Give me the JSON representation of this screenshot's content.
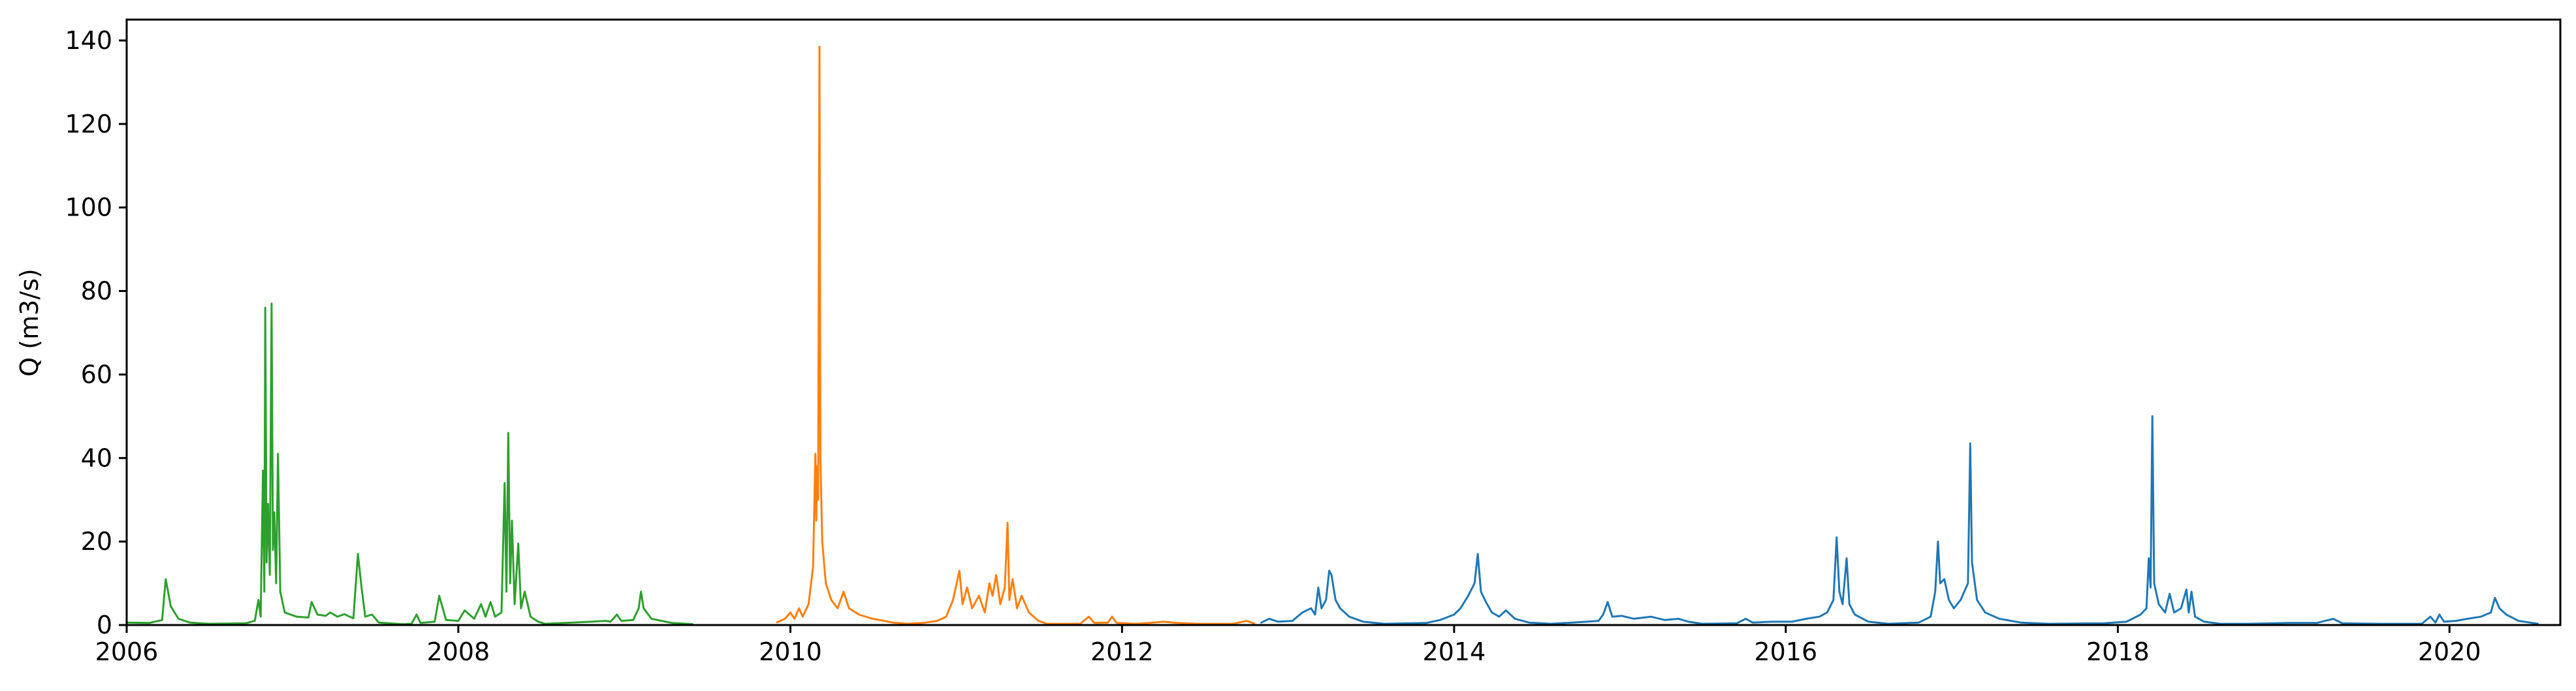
{
  "chart_data": {
    "type": "line",
    "title": "",
    "xlabel": "",
    "ylabel": "Q (m3/s)",
    "xlim": [
      "2006-01-01",
      "2020-09-01"
    ],
    "ylim": [
      0,
      145
    ],
    "x_ticks": [
      "2006",
      "2008",
      "2010",
      "2012",
      "2014",
      "2016",
      "2018",
      "2020"
    ],
    "y_ticks": [
      0,
      20,
      40,
      60,
      80,
      100,
      120,
      140
    ],
    "grid": false,
    "legend": "none",
    "series": [
      {
        "color": "#2ca02c",
        "points": [
          [
            "2006-01-01",
            0.6
          ],
          [
            "2006-02-20",
            0.5
          ],
          [
            "2006-03-20",
            1.2
          ],
          [
            "2006-03-28",
            11.0
          ],
          [
            "2006-04-08",
            4.5
          ],
          [
            "2006-04-25",
            1.5
          ],
          [
            "2006-05-20",
            0.6
          ],
          [
            "2006-07-01",
            0.3
          ],
          [
            "2006-09-20",
            0.4
          ],
          [
            "2006-10-10",
            1.0
          ],
          [
            "2006-10-18",
            6.0
          ],
          [
            "2006-10-23",
            2.0
          ],
          [
            "2006-10-28",
            37.0
          ],
          [
            "2006-10-31",
            8.0
          ],
          [
            "2006-11-02",
            76.0
          ],
          [
            "2006-11-05",
            15.0
          ],
          [
            "2006-11-08",
            29.0
          ],
          [
            "2006-11-12",
            12.0
          ],
          [
            "2006-11-16",
            77.0
          ],
          [
            "2006-11-19",
            18.0
          ],
          [
            "2006-11-22",
            27.0
          ],
          [
            "2006-11-26",
            10.0
          ],
          [
            "2006-11-30",
            41.0
          ],
          [
            "2006-12-05",
            8.0
          ],
          [
            "2006-12-15",
            3.0
          ],
          [
            "2007-01-10",
            2.0
          ],
          [
            "2007-02-05",
            1.8
          ],
          [
            "2007-02-12",
            5.5
          ],
          [
            "2007-02-25",
            2.5
          ],
          [
            "2007-03-15",
            2.2
          ],
          [
            "2007-03-25",
            3.0
          ],
          [
            "2007-04-10",
            2.0
          ],
          [
            "2007-04-25",
            2.6
          ],
          [
            "2007-05-15",
            1.6
          ],
          [
            "2007-05-25",
            17.0
          ],
          [
            "2007-06-02",
            9.0
          ],
          [
            "2007-06-10",
            2.0
          ],
          [
            "2007-06-25",
            2.5
          ],
          [
            "2007-07-10",
            0.6
          ],
          [
            "2007-09-01",
            0.2
          ],
          [
            "2007-09-20",
            0.3
          ],
          [
            "2007-10-01",
            2.5
          ],
          [
            "2007-10-10",
            0.5
          ],
          [
            "2007-11-10",
            0.8
          ],
          [
            "2007-11-20",
            7.0
          ],
          [
            "2007-12-05",
            1.2
          ],
          [
            "2008-01-01",
            1.0
          ],
          [
            "2008-01-15",
            3.5
          ],
          [
            "2008-02-05",
            1.5
          ],
          [
            "2008-02-20",
            5.0
          ],
          [
            "2008-03-01",
            2.0
          ],
          [
            "2008-03-12",
            5.5
          ],
          [
            "2008-03-22",
            2.0
          ],
          [
            "2008-04-05",
            3.0
          ],
          [
            "2008-04-12",
            34.0
          ],
          [
            "2008-04-16",
            8.0
          ],
          [
            "2008-04-20",
            46.0
          ],
          [
            "2008-04-24",
            10.0
          ],
          [
            "2008-04-28",
            25.0
          ],
          [
            "2008-05-04",
            5.0
          ],
          [
            "2008-05-12",
            19.5
          ],
          [
            "2008-05-18",
            4.0
          ],
          [
            "2008-05-26",
            8.0
          ],
          [
            "2008-06-08",
            2.0
          ],
          [
            "2008-06-25",
            0.8
          ],
          [
            "2008-07-10",
            0.3
          ],
          [
            "2008-10-20",
            0.8
          ],
          [
            "2008-11-20",
            1.0
          ],
          [
            "2008-12-01",
            0.8
          ],
          [
            "2008-12-15",
            2.5
          ],
          [
            "2008-12-25",
            1.0
          ],
          [
            "2009-01-20",
            1.2
          ],
          [
            "2009-02-01",
            4.0
          ],
          [
            "2009-02-06",
            8.0
          ],
          [
            "2009-02-12",
            4.0
          ],
          [
            "2009-03-01",
            1.5
          ],
          [
            "2009-04-15",
            0.5
          ],
          [
            "2009-06-01",
            0.2
          ]
        ]
      },
      {
        "color": "#ff7f0e",
        "points": [
          [
            "2009-12-01",
            0.6
          ],
          [
            "2009-12-20",
            1.5
          ],
          [
            "2010-01-01",
            3.0
          ],
          [
            "2010-01-10",
            1.5
          ],
          [
            "2010-01-20",
            4.0
          ],
          [
            "2010-01-28",
            2.0
          ],
          [
            "2010-02-10",
            5.0
          ],
          [
            "2010-02-20",
            14.0
          ],
          [
            "2010-02-25",
            41.0
          ],
          [
            "2010-02-27",
            25.0
          ],
          [
            "2010-03-01",
            38.0
          ],
          [
            "2010-03-03",
            30.0
          ],
          [
            "2010-03-06",
            138.5
          ],
          [
            "2010-03-08",
            40.0
          ],
          [
            "2010-03-12",
            20.0
          ],
          [
            "2010-03-20",
            10.0
          ],
          [
            "2010-04-01",
            6.0
          ],
          [
            "2010-04-15",
            4.0
          ],
          [
            "2010-04-28",
            8.0
          ],
          [
            "2010-05-10",
            4.0
          ],
          [
            "2010-06-01",
            2.5
          ],
          [
            "2010-07-01",
            1.5
          ],
          [
            "2010-08-15",
            0.6
          ],
          [
            "2010-09-15",
            0.3
          ],
          [
            "2010-10-20",
            0.5
          ],
          [
            "2010-11-20",
            1.0
          ],
          [
            "2010-12-10",
            2.0
          ],
          [
            "2010-12-25",
            6.0
          ],
          [
            "2011-01-08",
            13.0
          ],
          [
            "2011-01-15",
            5.0
          ],
          [
            "2011-01-25",
            9.0
          ],
          [
            "2011-02-05",
            4.0
          ],
          [
            "2011-02-20",
            7.0
          ],
          [
            "2011-03-05",
            3.0
          ],
          [
            "2011-03-15",
            10.0
          ],
          [
            "2011-03-22",
            7.0
          ],
          [
            "2011-03-30",
            12.0
          ],
          [
            "2011-04-08",
            5.0
          ],
          [
            "2011-04-18",
            9.0
          ],
          [
            "2011-04-24",
            24.5
          ],
          [
            "2011-04-28",
            6.0
          ],
          [
            "2011-05-05",
            11.0
          ],
          [
            "2011-05-15",
            4.0
          ],
          [
            "2011-05-25",
            7.0
          ],
          [
            "2011-06-10",
            3.0
          ],
          [
            "2011-07-01",
            1.0
          ],
          [
            "2011-07-20",
            0.3
          ],
          [
            "2011-10-01",
            0.3
          ],
          [
            "2011-10-20",
            2.0
          ],
          [
            "2011-11-01",
            0.5
          ],
          [
            "2011-12-01",
            0.6
          ],
          [
            "2011-12-10",
            2.0
          ],
          [
            "2011-12-20",
            0.5
          ],
          [
            "2012-02-01",
            0.3
          ],
          [
            "2012-03-01",
            0.5
          ],
          [
            "2012-04-01",
            0.8
          ],
          [
            "2012-05-01",
            0.5
          ],
          [
            "2012-06-15",
            0.3
          ],
          [
            "2012-09-01",
            0.3
          ],
          [
            "2012-10-01",
            1.0
          ],
          [
            "2012-10-20",
            0.3
          ]
        ]
      },
      {
        "color": "#1f77b4",
        "points": [
          [
            "2012-11-01",
            0.5
          ],
          [
            "2012-11-20",
            1.5
          ],
          [
            "2012-12-10",
            0.8
          ],
          [
            "2013-01-10",
            1.0
          ],
          [
            "2013-02-01",
            3.0
          ],
          [
            "2013-02-20",
            4.0
          ],
          [
            "2013-03-01",
            2.5
          ],
          [
            "2013-03-08",
            9.0
          ],
          [
            "2013-03-15",
            4.0
          ],
          [
            "2013-03-25",
            6.0
          ],
          [
            "2013-04-01",
            13.0
          ],
          [
            "2013-04-06",
            12.0
          ],
          [
            "2013-04-15",
            6.0
          ],
          [
            "2013-04-25",
            4.0
          ],
          [
            "2013-05-15",
            2.0
          ],
          [
            "2013-06-15",
            0.8
          ],
          [
            "2013-08-01",
            0.3
          ],
          [
            "2013-11-01",
            0.5
          ],
          [
            "2013-12-01",
            1.2
          ],
          [
            "2014-01-01",
            2.5
          ],
          [
            "2014-01-15",
            4.0
          ],
          [
            "2014-02-01",
            7.0
          ],
          [
            "2014-02-15",
            10.0
          ],
          [
            "2014-02-22",
            17.0
          ],
          [
            "2014-03-01",
            8.0
          ],
          [
            "2014-03-12",
            5.5
          ],
          [
            "2014-03-25",
            3.0
          ],
          [
            "2014-04-10",
            2.0
          ],
          [
            "2014-04-25",
            3.5
          ],
          [
            "2014-05-15",
            1.5
          ],
          [
            "2014-06-15",
            0.6
          ],
          [
            "2014-08-01",
            0.3
          ],
          [
            "2014-10-20",
            0.8
          ],
          [
            "2014-11-15",
            1.0
          ],
          [
            "2014-11-25",
            2.5
          ],
          [
            "2014-12-05",
            5.5
          ],
          [
            "2014-12-15",
            2.0
          ],
          [
            "2015-01-05",
            2.2
          ],
          [
            "2015-02-01",
            1.5
          ],
          [
            "2015-03-10",
            2.0
          ],
          [
            "2015-04-10",
            1.2
          ],
          [
            "2015-05-10",
            1.5
          ],
          [
            "2015-06-01",
            0.8
          ],
          [
            "2015-07-01",
            0.3
          ],
          [
            "2015-09-15",
            0.4
          ],
          [
            "2015-10-05",
            1.5
          ],
          [
            "2015-10-20",
            0.6
          ],
          [
            "2015-12-01",
            0.8
          ],
          [
            "2016-01-15",
            0.8
          ],
          [
            "2016-02-15",
            1.5
          ],
          [
            "2016-03-15",
            2.0
          ],
          [
            "2016-04-01",
            3.0
          ],
          [
            "2016-04-15",
            6.0
          ],
          [
            "2016-04-22",
            21.0
          ],
          [
            "2016-04-28",
            8.0
          ],
          [
            "2016-05-05",
            5.0
          ],
          [
            "2016-05-14",
            16.0
          ],
          [
            "2016-05-20",
            5.0
          ],
          [
            "2016-06-01",
            2.5
          ],
          [
            "2016-07-01",
            0.8
          ],
          [
            "2016-08-15",
            0.3
          ],
          [
            "2016-10-20",
            0.6
          ],
          [
            "2016-11-15",
            2.0
          ],
          [
            "2016-11-25",
            8.0
          ],
          [
            "2016-12-01",
            20.0
          ],
          [
            "2016-12-06",
            10.0
          ],
          [
            "2016-12-15",
            11.0
          ],
          [
            "2016-12-25",
            6.0
          ],
          [
            "2017-01-05",
            4.0
          ],
          [
            "2017-01-20",
            6.0
          ],
          [
            "2017-02-05",
            10.0
          ],
          [
            "2017-02-10",
            43.5
          ],
          [
            "2017-02-14",
            15.0
          ],
          [
            "2017-02-25",
            6.0
          ],
          [
            "2017-03-15",
            3.0
          ],
          [
            "2017-04-15",
            1.5
          ],
          [
            "2017-06-01",
            0.6
          ],
          [
            "2017-08-01",
            0.3
          ],
          [
            "2017-12-01",
            0.4
          ],
          [
            "2018-01-20",
            0.8
          ],
          [
            "2018-02-20",
            2.5
          ],
          [
            "2018-03-05",
            4.0
          ],
          [
            "2018-03-10",
            16.0
          ],
          [
            "2018-03-14",
            9.0
          ],
          [
            "2018-03-18",
            50.0
          ],
          [
            "2018-03-22",
            10.0
          ],
          [
            "2018-04-01",
            5.0
          ],
          [
            "2018-04-15",
            3.0
          ],
          [
            "2018-04-25",
            7.5
          ],
          [
            "2018-05-05",
            3.0
          ],
          [
            "2018-05-20",
            4.0
          ],
          [
            "2018-06-01",
            8.5
          ],
          [
            "2018-06-06",
            3.0
          ],
          [
            "2018-06-12",
            8.0
          ],
          [
            "2018-06-20",
            2.0
          ],
          [
            "2018-07-10",
            0.8
          ],
          [
            "2018-08-15",
            0.3
          ],
          [
            "2018-10-15",
            0.3
          ],
          [
            "2019-01-15",
            0.5
          ],
          [
            "2019-03-15",
            0.5
          ],
          [
            "2019-04-20",
            1.5
          ],
          [
            "2019-05-10",
            0.4
          ],
          [
            "2019-08-01",
            0.3
          ],
          [
            "2019-11-01",
            0.3
          ],
          [
            "2019-11-20",
            2.0
          ],
          [
            "2019-12-01",
            0.6
          ],
          [
            "2019-12-10",
            2.5
          ],
          [
            "2019-12-20",
            0.8
          ],
          [
            "2020-01-15",
            1.0
          ],
          [
            "2020-02-10",
            1.5
          ],
          [
            "2020-03-10",
            2.0
          ],
          [
            "2020-04-01",
            3.0
          ],
          [
            "2020-04-10",
            6.5
          ],
          [
            "2020-04-20",
            4.0
          ],
          [
            "2020-05-05",
            2.5
          ],
          [
            "2020-06-01",
            1.0
          ],
          [
            "2020-07-15",
            0.3
          ]
        ]
      }
    ]
  }
}
